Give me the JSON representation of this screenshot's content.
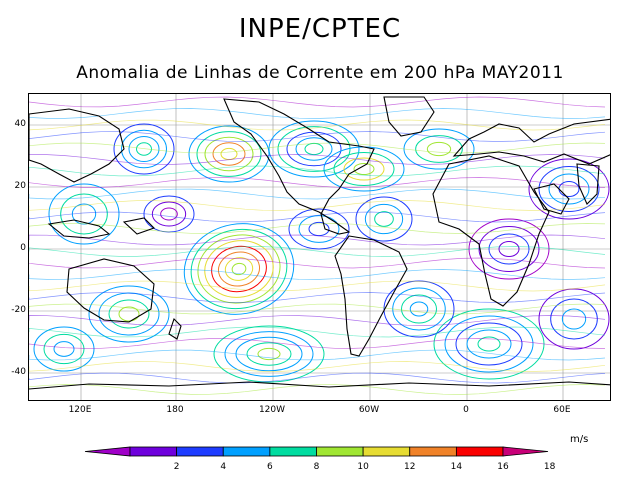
{
  "header": {
    "title": "INPE/CPTEC",
    "subtitle": "Anomalia de Linhas de Corrente em 200 hPa MAY2011"
  },
  "map": {
    "lat_labels": [
      "40",
      "20",
      "0",
      "-20",
      "-40"
    ],
    "lon_labels": [
      "120E",
      "180",
      "120W",
      "60W",
      "0",
      "60E"
    ],
    "grid": true,
    "projection": "cylindrical equidistant",
    "features": [
      "continent-outlines",
      "streamlines",
      "gridlines"
    ]
  },
  "legend": {
    "units": "m/s",
    "ticks": [
      "2",
      "4",
      "6",
      "8",
      "10",
      "12",
      "14",
      "16",
      "18"
    ],
    "colors": [
      "#a000c8",
      "#6e00dc",
      "#1e3cff",
      "#00a0ff",
      "#00dca0",
      "#a0e632",
      "#e6dc32",
      "#f08228",
      "#fa0000",
      "#c80078"
    ]
  }
}
